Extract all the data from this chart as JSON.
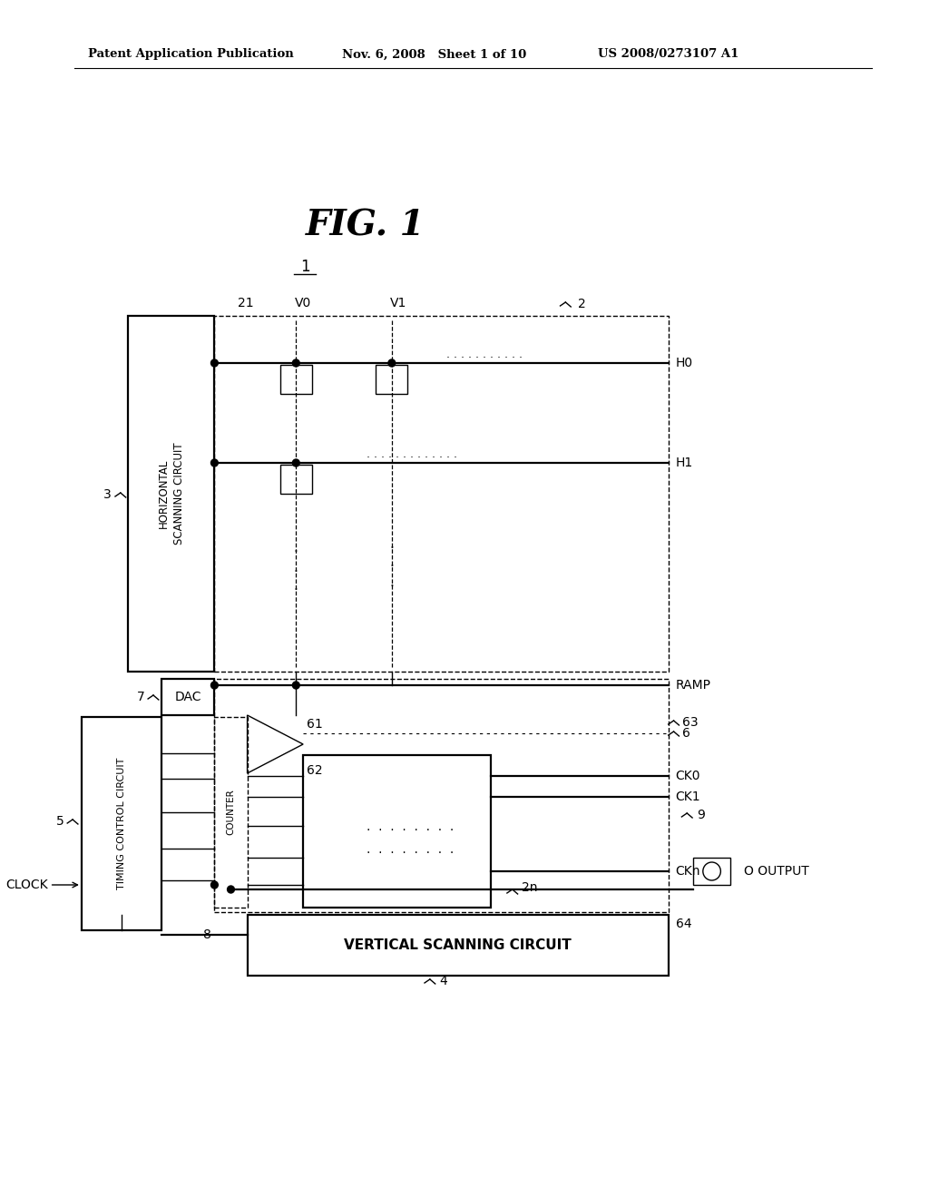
{
  "bg_color": "#ffffff",
  "text_color": "#000000",
  "header_left": "Patent Application Publication",
  "header_mid": "Nov. 6, 2008   Sheet 1 of 10",
  "header_right": "US 2008/0273107 A1",
  "fig_title": "FIG. 1",
  "fig_label": "1",
  "label_horiz_scanning": "HORIZONTAL\nSCANNING CIRCUIT",
  "label_vertical_scanning": "VERTICAL SCANNING CIRCUIT",
  "label_timing": "TIMING CONTROL CIRCUIT",
  "label_dac": "DAC",
  "label_counter": "COUNTER",
  "label_clock": "CLOCK",
  "label_output": "OUTPUT",
  "label_ramp": "RAMP",
  "label_ck0": "CK0",
  "label_ck1": "CK1",
  "label_ckn": "CKn",
  "label_h0": "H0",
  "label_h1": "H1",
  "label_v0": "V0",
  "label_v1": "V1",
  "label_2": "2",
  "label_21": "21",
  "label_3": "3",
  "label_4": "4",
  "label_5": "5",
  "label_6": "6",
  "label_7": "7",
  "label_8": "8",
  "label_9": "9",
  "label_61": "61",
  "label_62": "62",
  "label_63": "63",
  "label_64": "64",
  "label_2n": "2n"
}
